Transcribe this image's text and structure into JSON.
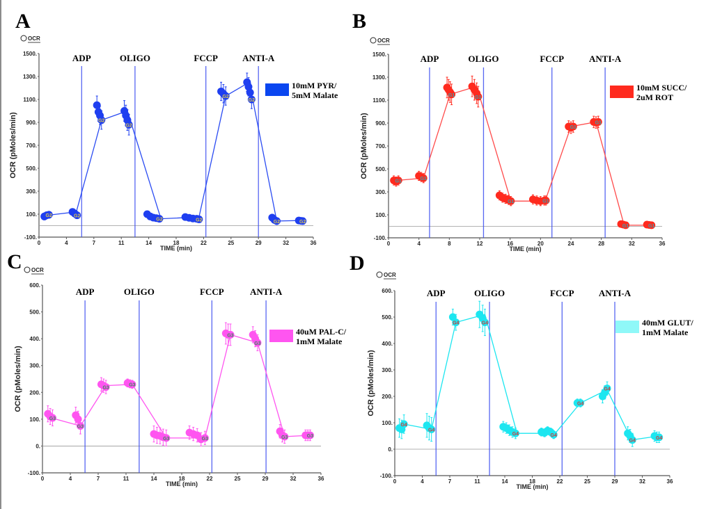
{
  "figure": {
    "panels": [
      "A",
      "B",
      "C",
      "D"
    ]
  },
  "chart_data": [
    {
      "panel": "A",
      "type": "line",
      "title": "",
      "series_toggle_label": "OCR",
      "xlabel": "TIME (min)",
      "ylabel": "OCR (pMoles/min)",
      "xlim": [
        0,
        36
      ],
      "ylim": [
        -100,
        1500
      ],
      "xticks": [
        "0",
        "4",
        "7",
        "11",
        "14",
        "18",
        "22",
        "25",
        "29",
        "32",
        "36"
      ],
      "yticks": [
        "1500",
        "1300",
        "1100",
        "900",
        "700",
        "500",
        "300",
        "100",
        "-100"
      ],
      "ytick_values": [
        1500,
        1300,
        1100,
        900,
        700,
        500,
        300,
        100,
        -100
      ],
      "grid": false,
      "zero_line": true,
      "injections": [
        {
          "label": "ADP",
          "x": 5.6
        },
        {
          "label": "OLIGO",
          "x": 12.6
        },
        {
          "label": "FCCP",
          "x": 21.9
        },
        {
          "label": "ANTI-A",
          "x": 28.8
        }
      ],
      "legend": {
        "label_line1": "10mM PYR/",
        "label_line2": "5mM Malate",
        "placement": "right",
        "color": "#0a46f0"
      },
      "marker_label": "G2",
      "color": "#1f3ff0",
      "line_color": "#2a4bf2",
      "marker_text_color": "#e3c94a",
      "x": [
        1.1,
        4.9,
        8.2,
        11.6,
        16.0,
        21.0,
        24.5,
        27.6,
        31.2,
        34.6
      ],
      "y": [
        90,
        120,
        920,
        1000,
        60,
        75,
        1130,
        1250,
        40,
        45
      ],
      "clusters": [
        {
          "x": [
            0.7,
            1.0,
            1.3
          ],
          "y": [
            80,
            90,
            95
          ],
          "err": 30
        },
        {
          "x": [
            4.4,
            4.7,
            5.0
          ],
          "y": [
            120,
            105,
            90
          ],
          "err": 20
        },
        {
          "x": [
            7.6,
            7.8,
            8.0,
            8.2
          ],
          "y": [
            1050,
            990,
            960,
            920
          ],
          "err": 80
        },
        {
          "x": [
            11.2,
            11.4,
            11.6,
            11.8
          ],
          "y": [
            1000,
            960,
            920,
            880
          ],
          "err": 90
        },
        {
          "x": [
            14.2,
            14.6,
            15.0,
            15.4,
            15.8
          ],
          "y": [
            100,
            80,
            70,
            65,
            60
          ],
          "err": 25
        },
        {
          "x": [
            19.2,
            19.7,
            20.2,
            20.7,
            21.0
          ],
          "y": [
            75,
            68,
            62,
            60,
            55
          ],
          "err": 15
        },
        {
          "x": [
            23.9,
            24.2,
            24.5
          ],
          "y": [
            1170,
            1150,
            1130
          ],
          "err": 80
        },
        {
          "x": [
            27.3,
            27.5,
            27.7,
            27.9
          ],
          "y": [
            1250,
            1210,
            1160,
            1100
          ],
          "err": 80
        },
        {
          "x": [
            30.6,
            30.9,
            31.2
          ],
          "y": [
            70,
            50,
            40
          ],
          "err": 30
        },
        {
          "x": [
            34.1,
            34.4,
            34.6
          ],
          "y": [
            45,
            42,
            40
          ],
          "err": 20
        }
      ]
    },
    {
      "panel": "B",
      "type": "line",
      "title": "",
      "series_toggle_label": "OCR",
      "xlabel": "TIME (min)",
      "ylabel": "OCR (pMoles/min)",
      "xlim": [
        0,
        36
      ],
      "ylim": [
        -100,
        1500
      ],
      "xticks": [
        "0",
        "4",
        "8",
        "12",
        "16",
        "20",
        "24",
        "28",
        "32",
        "36"
      ],
      "yticks": [
        "1500",
        "1300",
        "1100",
        "900",
        "700",
        "500",
        "300",
        "100",
        "-100"
      ],
      "ytick_values": [
        1500,
        1300,
        1100,
        900,
        700,
        500,
        300,
        100,
        -100
      ],
      "grid": false,
      "zero_line": true,
      "injections": [
        {
          "label": "ADP",
          "x": 5.4
        },
        {
          "label": "OLIGO",
          "x": 12.5
        },
        {
          "label": "FCCP",
          "x": 21.5
        },
        {
          "label": "ANTI-A",
          "x": 28.5
        }
      ],
      "legend": {
        "label_line1": "10mM SUCC/",
        "label_line2": "2uM  ROT",
        "placement": "right",
        "color": "#ff2a1e"
      },
      "marker_label": "G1",
      "color": "#ff2a1e",
      "line_color": "#ff4a4a",
      "marker_text_color": "#3aa0b0",
      "x": [
        1.1,
        4.6,
        8.1,
        11.6,
        16.1,
        20.6,
        24.0,
        27.3,
        31.0,
        34.6
      ],
      "y": [
        400,
        420,
        1150,
        1220,
        220,
        220,
        870,
        910,
        10,
        10
      ],
      "clusters": [
        {
          "x": [
            0.7,
            1.0,
            1.3
          ],
          "y": [
            400,
            390,
            400
          ],
          "err": 40
        },
        {
          "x": [
            4.0,
            4.3,
            4.6
          ],
          "y": [
            440,
            430,
            420
          ],
          "err": 40
        },
        {
          "x": [
            7.7,
            7.9,
            8.1,
            8.3
          ],
          "y": [
            1210,
            1190,
            1170,
            1150
          ],
          "err": 90
        },
        {
          "x": [
            11.0,
            11.3,
            11.6,
            11.8
          ],
          "y": [
            1220,
            1190,
            1160,
            1130
          ],
          "err": 90
        },
        {
          "x": [
            14.6,
            15.0,
            15.4,
            15.8,
            16.1
          ],
          "y": [
            270,
            250,
            240,
            230,
            220
          ],
          "err": 40
        },
        {
          "x": [
            19.0,
            19.5,
            20.0,
            20.5,
            20.7
          ],
          "y": [
            235,
            225,
            220,
            225,
            225
          ],
          "err": 40
        },
        {
          "x": [
            23.7,
            24.0,
            24.3
          ],
          "y": [
            870,
            860,
            870
          ],
          "err": 50
        },
        {
          "x": [
            27.0,
            27.3,
            27.6
          ],
          "y": [
            910,
            905,
            910
          ],
          "err": 50
        },
        {
          "x": [
            30.6,
            30.9,
            31.2
          ],
          "y": [
            20,
            15,
            10
          ],
          "err": 15
        },
        {
          "x": [
            34.0,
            34.3,
            34.6
          ],
          "y": [
            15,
            12,
            10
          ],
          "err": 12
        }
      ]
    },
    {
      "panel": "C",
      "type": "line",
      "title": "",
      "series_toggle_label": "OCR",
      "xlabel": "TIME (min)",
      "ylabel": "OCR (pMoles/min)",
      "xlim": [
        0,
        36
      ],
      "ylim": [
        -100,
        600
      ],
      "xticks": [
        "0",
        "4",
        "7",
        "11",
        "14",
        "18",
        "22",
        "25",
        "29",
        "32",
        "36"
      ],
      "yticks": [
        "600",
        "500",
        "400",
        "300",
        "200",
        "100",
        "0",
        "-100"
      ],
      "ytick_values": [
        600,
        500,
        400,
        300,
        200,
        100,
        0,
        -100
      ],
      "grid": false,
      "zero_line": true,
      "injections": [
        {
          "label": "ADP",
          "x": 5.5
        },
        {
          "label": "OLIGO",
          "x": 12.5
        },
        {
          "label": "FCCP",
          "x": 21.9
        },
        {
          "label": "ANTI-A",
          "x": 28.9
        }
      ],
      "legend": {
        "label_line1": "40uM PAL-C/",
        "label_line2": "1mM Malate",
        "placement": "right",
        "color": "#ff55f0"
      },
      "marker_label": "G3",
      "color": "#ff55f0",
      "line_color": "#ff55f0",
      "marker_text_color": "#3a8a5a",
      "x": [
        1.1,
        4.9,
        8.2,
        11.6,
        16.0,
        21.0,
        24.3,
        27.8,
        31.3,
        34.6
      ],
      "y": [
        105,
        75,
        225,
        230,
        30,
        30,
        415,
        385,
        35,
        40
      ],
      "clusters": [
        {
          "x": [
            0.7,
            1.0,
            1.3
          ],
          "y": [
            120,
            110,
            105
          ],
          "err": 30
        },
        {
          "x": [
            4.3,
            4.6,
            4.9
          ],
          "y": [
            115,
            100,
            75
          ],
          "err": 30
        },
        {
          "x": [
            7.6,
            7.9,
            8.2
          ],
          "y": [
            230,
            225,
            220
          ],
          "err": 25
        },
        {
          "x": [
            11.0,
            11.3,
            11.6
          ],
          "y": [
            235,
            232,
            230
          ],
          "err": 15
        },
        {
          "x": [
            14.4,
            14.8,
            15.2,
            15.6,
            16.0
          ],
          "y": [
            45,
            40,
            38,
            33,
            30
          ],
          "err": 30
        },
        {
          "x": [
            19.0,
            19.5,
            20.0,
            20.5,
            21.0
          ],
          "y": [
            50,
            45,
            40,
            25,
            30
          ],
          "err": 25
        },
        {
          "x": [
            23.7,
            24.0,
            24.3
          ],
          "y": [
            420,
            415,
            415
          ],
          "err": 40
        },
        {
          "x": [
            27.2,
            27.5,
            27.8
          ],
          "y": [
            415,
            400,
            385
          ],
          "err": 30
        },
        {
          "x": [
            30.7,
            31.0,
            31.3
          ],
          "y": [
            55,
            40,
            35
          ],
          "err": 25
        },
        {
          "x": [
            34.0,
            34.3,
            34.6
          ],
          "y": [
            40,
            40,
            40
          ],
          "err": 20
        }
      ]
    },
    {
      "panel": "D",
      "type": "line",
      "title": "",
      "series_toggle_label": "OCR",
      "xlabel": "TIME (min)",
      "ylabel": "OCR (pMoles/min)",
      "xlim": [
        0,
        36
      ],
      "ylim": [
        -100,
        600
      ],
      "xticks": [
        "0",
        "4",
        "7",
        "11",
        "14",
        "18",
        "22",
        "25",
        "29",
        "32",
        "36"
      ],
      "yticks": [
        "600",
        "500",
        "400",
        "300",
        "200",
        "100",
        "0",
        "-100"
      ],
      "ytick_values": [
        600,
        500,
        400,
        300,
        200,
        100,
        0,
        -100
      ],
      "grid": false,
      "zero_line": true,
      "injections": [
        {
          "label": "ADP",
          "x": 5.4
        },
        {
          "label": "OLIGO",
          "x": 12.4
        },
        {
          "label": "FCCP",
          "x": 21.9
        },
        {
          "label": "ANTI-A",
          "x": 28.8
        }
      ],
      "legend": {
        "label_line1": "40mM GLUT/",
        "label_line2": "1mM Malate",
        "placement": "right",
        "color": "#8ff8f8"
      },
      "marker_label": "G4",
      "color": "#1ce6f0",
      "line_color": "#1ce6f0",
      "marker_text_color": "#d23a3a",
      "x": [
        1.2,
        4.8,
        8.0,
        11.8,
        16.0,
        21.0,
        24.3,
        27.8,
        31.0,
        34.6
      ],
      "y": [
        95,
        75,
        480,
        510,
        60,
        60,
        175,
        225,
        35,
        50
      ],
      "clusters": [
        {
          "x": [
            0.6,
            0.9,
            1.2
          ],
          "y": [
            80,
            75,
            95
          ],
          "err": 35
        },
        {
          "x": [
            4.2,
            4.5,
            4.8
          ],
          "y": [
            90,
            80,
            75
          ],
          "err": 45
        },
        {
          "x": [
            7.6,
            8.0
          ],
          "y": [
            500,
            480
          ],
          "err": 30
        },
        {
          "x": [
            11.1,
            11.5,
            11.8
          ],
          "y": [
            510,
            495,
            480
          ],
          "err": 50
        },
        {
          "x": [
            14.2,
            14.6,
            15.0,
            15.4,
            15.8
          ],
          "y": [
            85,
            80,
            72,
            65,
            60
          ],
          "err": 20
        },
        {
          "x": [
            19.2,
            19.6,
            20.0,
            20.4,
            20.8
          ],
          "y": [
            65,
            62,
            70,
            65,
            55
          ],
          "err": 15
        },
        {
          "x": [
            23.9,
            24.3
          ],
          "y": [
            175,
            175
          ],
          "err": 15
        },
        {
          "x": [
            27.2,
            27.5,
            27.8
          ],
          "y": [
            200,
            215,
            230
          ],
          "err": 25
        },
        {
          "x": [
            30.5,
            30.8,
            31.1
          ],
          "y": [
            60,
            50,
            35
          ],
          "err": 25
        },
        {
          "x": [
            34.0,
            34.3,
            34.6
          ],
          "y": [
            50,
            45,
            45
          ],
          "err": 20
        }
      ]
    }
  ]
}
